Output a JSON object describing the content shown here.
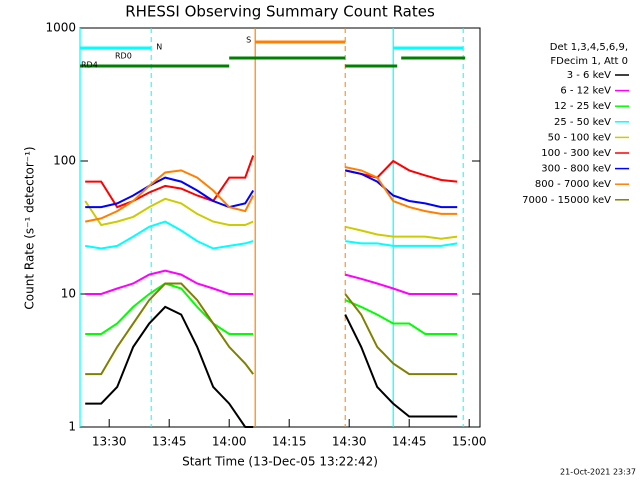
{
  "chart_data": {
    "type": "line",
    "title": "RHESSI Observing Summary Count Rates",
    "xlabel": "Start Time (13-Dec-05 13:22:42)",
    "ylabel": "Count Rate (s⁻¹ detector⁻¹)",
    "footer": "21-Oct-2021 23:37",
    "legend_header": [
      "Det 1,3,4,5,6,9,",
      "FDecim 1, Att 0"
    ],
    "log_y": true,
    "xlim": [
      "13:22:42",
      "15:02:42"
    ],
    "xticks": [
      "13:30",
      "13:45",
      "14:00",
      "14:15",
      "14:30",
      "14:45",
      "15:00"
    ],
    "ylim": [
      1,
      1000
    ],
    "yticks": [
      1,
      10,
      100,
      1000
    ],
    "x": [
      "13:24",
      "13:28",
      "13:32",
      "13:36",
      "13:40",
      "13:44",
      "13:48",
      "13:52",
      "13:56",
      "14:00",
      "14:04",
      "14:06",
      "14:18",
      "14:29",
      "14:33",
      "14:37",
      "14:41",
      "14:45",
      "14:49",
      "14:53",
      "14:57"
    ],
    "series": [
      {
        "name": "3 - 6 keV",
        "color": "#000000",
        "values": [
          1.5,
          1.5,
          2,
          4,
          6,
          8,
          7,
          4,
          2,
          1.5,
          1,
          1,
          null,
          7,
          4,
          2,
          1.5,
          1.2,
          1.2,
          1.2,
          1.2
        ]
      },
      {
        "name": "6 - 12 keV",
        "color": "#ff00ff",
        "values": [
          10,
          10,
          11,
          12,
          14,
          15,
          14,
          12,
          11,
          10,
          10,
          10,
          null,
          14,
          13,
          12,
          11,
          10,
          10,
          10,
          10
        ]
      },
      {
        "name": "12 - 25 keV",
        "color": "#00ff00",
        "values": [
          5,
          5,
          6,
          8,
          10,
          12,
          11,
          8,
          6,
          5,
          5,
          5,
          null,
          9,
          8,
          7,
          6,
          6,
          5,
          5,
          5
        ]
      },
      {
        "name": "25 - 50 keV",
        "color": "#00ffff",
        "values": [
          23,
          22,
          23,
          27,
          32,
          35,
          30,
          25,
          22,
          23,
          24,
          25,
          null,
          25,
          24,
          24,
          23,
          23,
          23,
          23,
          24
        ]
      },
      {
        "name": "50 - 100 keV",
        "color": "#cccc00",
        "values": [
          50,
          33,
          35,
          38,
          45,
          52,
          48,
          40,
          35,
          33,
          33,
          35,
          null,
          32,
          30,
          28,
          27,
          27,
          27,
          26,
          27
        ]
      },
      {
        "name": "100 - 300 keV",
        "color": "#ff0000",
        "values": [
          70,
          70,
          45,
          50,
          58,
          65,
          62,
          55,
          50,
          75,
          75,
          110,
          null,
          85,
          80,
          75,
          100,
          85,
          78,
          72,
          70
        ]
      },
      {
        "name": "300 - 800 keV",
        "color": "#0000ff",
        "values": [
          45,
          45,
          48,
          55,
          65,
          75,
          70,
          60,
          50,
          45,
          48,
          60,
          null,
          85,
          80,
          70,
          55,
          50,
          48,
          45,
          45
        ]
      },
      {
        "name": "800 - 7000 keV",
        "color": "#ff8000",
        "values": [
          35,
          37,
          42,
          50,
          65,
          82,
          85,
          75,
          60,
          45,
          42,
          55,
          null,
          90,
          85,
          75,
          50,
          45,
          42,
          40,
          40
        ]
      },
      {
        "name": "7000 - 15000 keV",
        "color": "#808000",
        "values": [
          2.5,
          2.5,
          4,
          6,
          9,
          12,
          12,
          9,
          6,
          4,
          3,
          2.5,
          null,
          10,
          7,
          4,
          3,
          2.5,
          2.5,
          2.5,
          2.5
        ]
      }
    ],
    "state_bars": [
      {
        "label": "N",
        "color": "#00ffff",
        "intervals": [
          [
            "13:22:42",
            "13:40:30"
          ],
          [
            "14:41",
            "14:58:30"
          ]
        ]
      },
      {
        "label": "S",
        "color": "#ff8000",
        "intervals": [
          [
            "14:06:30",
            "14:29"
          ]
        ]
      },
      {
        "label": "RD0",
        "color": "#008000",
        "intervals": [
          [
            "14:00",
            "14:29"
          ],
          [
            "14:43",
            "14:59"
          ]
        ]
      },
      {
        "label": "RD4",
        "color": "#008000",
        "intervals": [
          [
            "13:22:42",
            "14:00"
          ],
          [
            "14:29",
            "14:42"
          ]
        ]
      }
    ]
  }
}
